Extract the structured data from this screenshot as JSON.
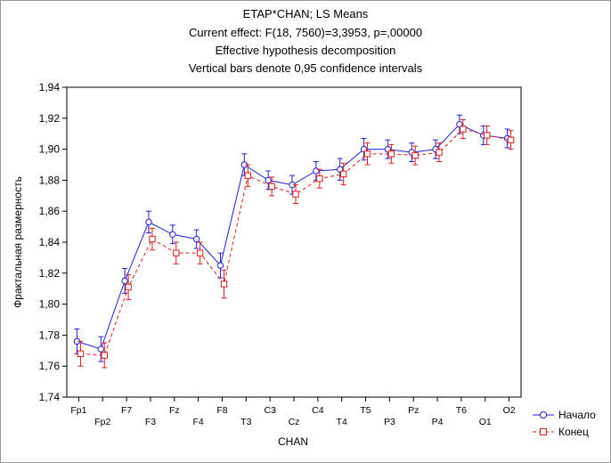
{
  "chart_data": {
    "type": "line",
    "title_lines": [
      "ETAP*CHAN; LS Means",
      "Current effect: F(18, 7560)=3,3953, p=,00000",
      "Effective hypothesis decomposition",
      "Vertical bars denote 0,95 confidence intervals"
    ],
    "xlabel": "CHAN",
    "ylabel": "Фрактальная размерность",
    "ylim": [
      1.74,
      1.94
    ],
    "yticks": [
      "1,74",
      "1,76",
      "1,78",
      "1,80",
      "1,82",
      "1,84",
      "1,86",
      "1,88",
      "1,90",
      "1,92",
      "1,94"
    ],
    "categories": [
      "Fp1",
      "Fp2",
      "F7",
      "F3",
      "Fz",
      "F4",
      "F8",
      "T3",
      "C3",
      "Cz",
      "C4",
      "T4",
      "T5",
      "P3",
      "Pz",
      "P4",
      "T6",
      "O1",
      "O2"
    ],
    "legend_position": "bottom-right",
    "series": [
      {
        "name": "Начало",
        "color": "#1f1fd6",
        "line_style": "solid",
        "marker": "circle",
        "values": [
          1.776,
          1.771,
          1.815,
          1.853,
          1.845,
          1.842,
          1.825,
          1.89,
          1.88,
          1.877,
          1.886,
          1.887,
          1.9,
          1.9,
          1.898,
          1.9,
          1.916,
          1.909,
          1.907
        ],
        "ci": [
          0.008,
          0.008,
          0.008,
          0.007,
          0.006,
          0.006,
          0.008,
          0.007,
          0.006,
          0.006,
          0.006,
          0.007,
          0.007,
          0.006,
          0.006,
          0.006,
          0.006,
          0.006,
          0.006
        ]
      },
      {
        "name": "Конец",
        "color": "#e01c1c",
        "line_style": "dashed",
        "marker": "square",
        "values": [
          1.768,
          1.767,
          1.811,
          1.842,
          1.833,
          1.833,
          1.813,
          1.883,
          1.876,
          1.871,
          1.881,
          1.884,
          1.897,
          1.897,
          1.896,
          1.898,
          1.913,
          1.909,
          1.906
        ],
        "ci": [
          0.008,
          0.008,
          0.008,
          0.007,
          0.007,
          0.007,
          0.009,
          0.007,
          0.006,
          0.006,
          0.006,
          0.007,
          0.007,
          0.006,
          0.006,
          0.006,
          0.006,
          0.006,
          0.006
        ]
      }
    ]
  }
}
